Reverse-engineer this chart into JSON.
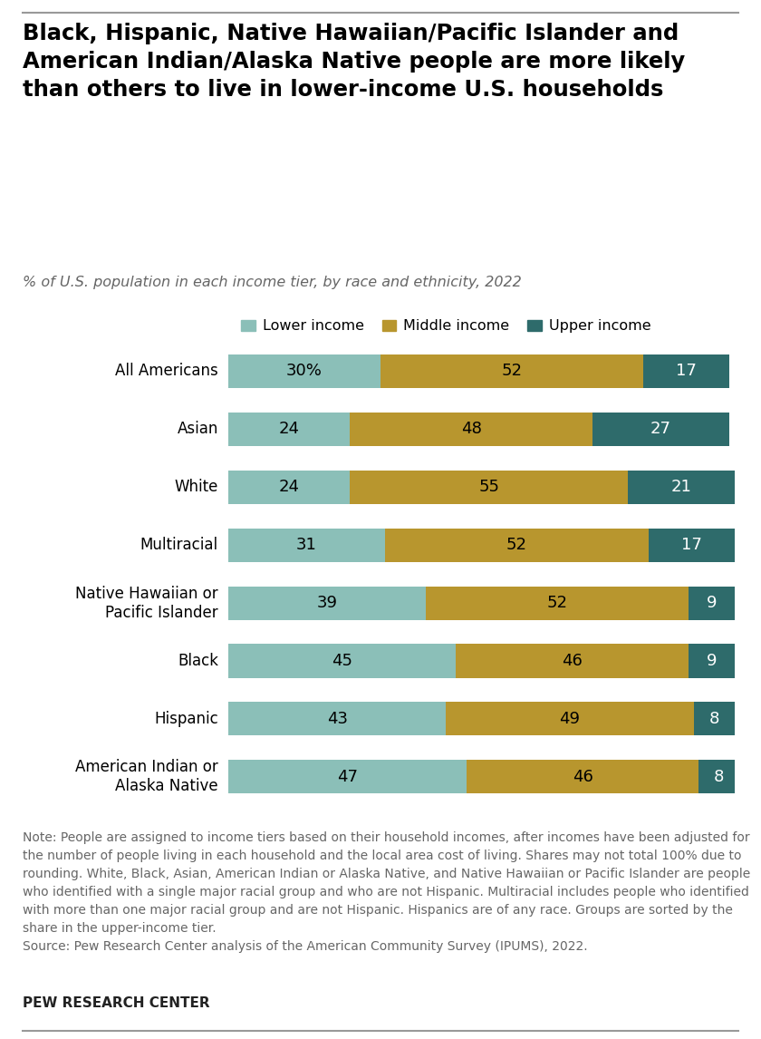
{
  "title": "Black, Hispanic, Native Hawaiian/Pacific Islander and\nAmerican Indian/Alaska Native people are more likely\nthan others to live in lower-income U.S. households",
  "subtitle": "% of U.S. population in each income tier, by race and ethnicity, 2022",
  "categories": [
    "All Americans",
    "Asian",
    "White",
    "Multiracial",
    "Native Hawaiian or\nPacific Islander",
    "Black",
    "Hispanic",
    "American Indian or\nAlaska Native"
  ],
  "lower_income": [
    30,
    24,
    24,
    31,
    39,
    45,
    43,
    47
  ],
  "middle_income": [
    52,
    48,
    55,
    52,
    52,
    46,
    49,
    46
  ],
  "upper_income": [
    17,
    27,
    21,
    17,
    9,
    9,
    8,
    8
  ],
  "lower_label": [
    "30%",
    "24",
    "24",
    "31",
    "39",
    "45",
    "43",
    "47"
  ],
  "middle_label": [
    "52",
    "48",
    "55",
    "52",
    "52",
    "46",
    "49",
    "46"
  ],
  "upper_label": [
    "17",
    "27",
    "21",
    "17",
    "9",
    "9",
    "8",
    "8"
  ],
  "color_lower": "#8BBFB8",
  "color_middle": "#B8962E",
  "color_upper": "#2E6B6B",
  "legend_labels": [
    "Lower income",
    "Middle income",
    "Upper income"
  ],
  "note": "Note: People are assigned to income tiers based on their household incomes, after incomes have been adjusted for the number of people living in each household and the local area cost of living. Shares may not total 100% due to rounding. White, Black, Asian, American Indian or Alaska Native, and Native Hawaiian or Pacific Islander are people who identified with a single major racial group and who are not Hispanic. Multiracial includes people who identified with more than one major racial group and are not Hispanic. Hispanics are of any race. Groups are sorted by the share in the upper-income tier.",
  "source": "Source: Pew Research Center analysis of the American Community Survey (IPUMS), 2022.",
  "brand": "PEW RESEARCH CENTER",
  "background_color": "#FFFFFF",
  "bar_height": 0.58,
  "title_color": "#000000",
  "subtitle_color": "#666666",
  "note_color": "#666666",
  "label_fontsize": 13,
  "title_fontsize": 17.5,
  "subtitle_fontsize": 11.5,
  "note_fontsize": 10,
  "brand_fontsize": 11
}
